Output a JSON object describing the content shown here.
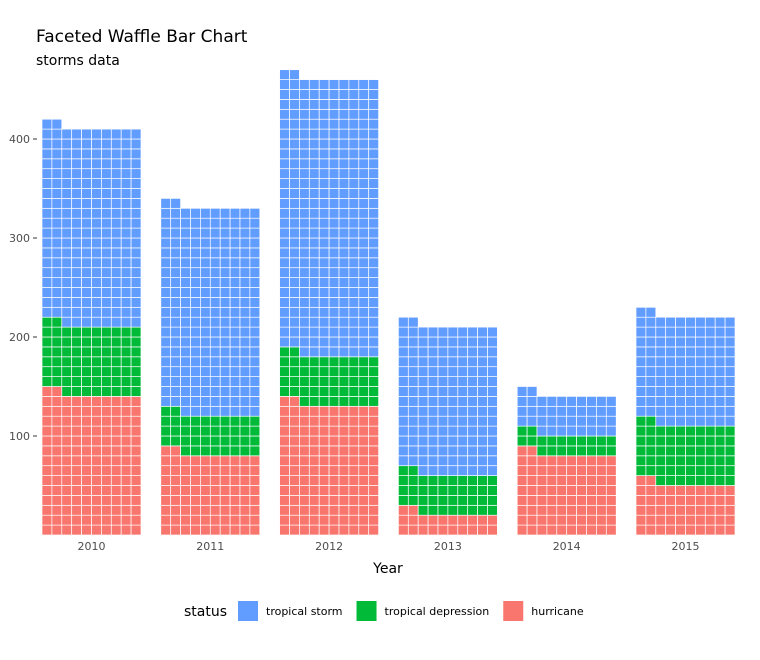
{
  "chart_data": {
    "type": "waffle",
    "title": "Faceted Waffle Bar Chart",
    "subtitle": "storms data",
    "xlabel": "Year",
    "ylabel": "",
    "ylim": [
      0,
      470
    ],
    "y_ticks": [
      100,
      200,
      300,
      400
    ],
    "facets": [
      "2010",
      "2011",
      "2012",
      "2013",
      "2014",
      "2015"
    ],
    "unit_per_cell": 1,
    "cells_per_row": 10,
    "series": [
      {
        "name": "hurricane",
        "color": "#F8766D",
        "values": [
          142,
          82,
          132,
          22,
          82,
          52
        ]
      },
      {
        "name": "tropical depression",
        "color": "#00BA38",
        "values": [
          70,
          40,
          50,
          40,
          20,
          60
        ]
      },
      {
        "name": "tropical storm",
        "color": "#619CFF",
        "values": [
          200,
          210,
          280,
          150,
          40,
          110
        ]
      }
    ],
    "legend": {
      "title": "status",
      "position": "bottom",
      "entries": [
        {
          "label": "tropical storm",
          "color": "#619CFF"
        },
        {
          "label": "tropical depression",
          "color": "#00BA38"
        },
        {
          "label": "hurricane",
          "color": "#F8766D"
        }
      ]
    }
  }
}
